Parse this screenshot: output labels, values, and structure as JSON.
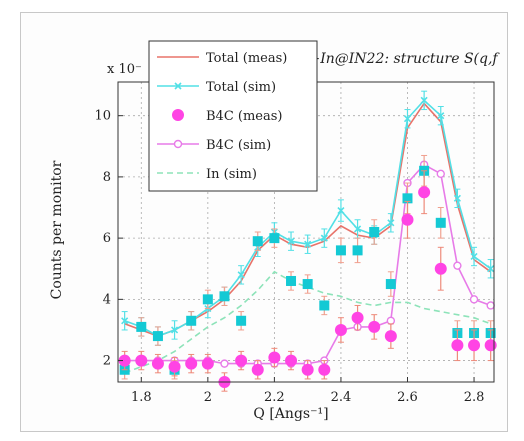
{
  "chart_data": {
    "type": "line",
    "title": "l−In@IN22: structure S(q,f",
    "xlabel": "Q [Angs⁻¹]",
    "ylabel": "Counts per monitor",
    "scale_label": "x 10⁻",
    "xlim": [
      1.73,
      2.86
    ],
    "ylim": [
      1.3,
      11.1
    ],
    "xticks": [
      1.8,
      2.0,
      2.2,
      2.4,
      2.6,
      2.8
    ],
    "xtick_labels": [
      "1.8",
      "2",
      "2.2",
      "2.4",
      "2.6",
      "2.8"
    ],
    "yticks": [
      2,
      4,
      6,
      8,
      10
    ],
    "ytick_labels": [
      "2",
      "4",
      "6",
      "8",
      "10"
    ],
    "grid": true,
    "legend_position": "top-left",
    "series": [
      {
        "name": "Total (meas)",
        "style": "line",
        "color": "#e8736a",
        "x": [
          1.75,
          1.8,
          1.85,
          1.9,
          1.95,
          2.0,
          2.05,
          2.1,
          2.15,
          2.2,
          2.25,
          2.3,
          2.35,
          2.4,
          2.45,
          2.5,
          2.55,
          2.6,
          2.65,
          2.7,
          2.75,
          2.8,
          2.85
        ],
        "y": [
          3.2,
          3.0,
          2.8,
          3.0,
          3.3,
          3.6,
          4.0,
          4.6,
          5.6,
          6.1,
          5.8,
          5.7,
          5.9,
          6.4,
          6.1,
          6.0,
          6.4,
          9.6,
          10.4,
          9.8,
          7.1,
          5.3,
          4.9
        ]
      },
      {
        "name": "Total (sim)",
        "style": "line-marker",
        "marker": "x",
        "color": "#52e0e6",
        "x": [
          1.75,
          1.8,
          1.85,
          1.9,
          1.95,
          2.0,
          2.05,
          2.1,
          2.15,
          2.2,
          2.25,
          2.3,
          2.35,
          2.4,
          2.45,
          2.5,
          2.55,
          2.6,
          2.65,
          2.7,
          2.75,
          2.8,
          2.85
        ],
        "y": [
          3.3,
          3.1,
          2.8,
          3.0,
          3.3,
          3.7,
          4.1,
          4.8,
          5.7,
          6.2,
          5.9,
          5.8,
          6.0,
          6.9,
          6.3,
          6.1,
          6.5,
          9.9,
          10.5,
          10.0,
          7.3,
          5.4,
          5.0
        ],
        "err": [
          0.3,
          0.3,
          0.3,
          0.3,
          0.3,
          0.3,
          0.3,
          0.3,
          0.3,
          0.3,
          0.3,
          0.3,
          0.3,
          0.35,
          0.3,
          0.3,
          0.3,
          0.3,
          0.3,
          0.3,
          0.3,
          0.3,
          0.3
        ]
      },
      {
        "name": "B4C (meas)",
        "style": "marker",
        "marker": "circle",
        "color": "#ff44e4",
        "x": [
          1.75,
          1.8,
          1.85,
          1.9,
          1.95,
          2.0,
          2.05,
          2.1,
          2.15,
          2.2,
          2.25,
          2.3,
          2.35,
          2.4,
          2.45,
          2.5,
          2.55,
          2.6,
          2.65,
          2.7,
          2.75,
          2.8,
          2.85
        ],
        "y": [
          2.0,
          2.0,
          1.9,
          1.8,
          1.9,
          1.9,
          1.3,
          2.0,
          1.7,
          2.1,
          2.0,
          1.7,
          1.7,
          3.0,
          3.4,
          3.1,
          2.8,
          6.6,
          7.5,
          5.0,
          2.5,
          2.5,
          2.5
        ],
        "err": [
          0.3,
          0.3,
          0.3,
          0.3,
          0.3,
          0.3,
          0.3,
          0.3,
          0.3,
          0.3,
          0.3,
          0.3,
          0.3,
          0.4,
          0.4,
          0.4,
          0.4,
          0.6,
          0.7,
          0.7,
          0.5,
          0.5,
          0.5
        ]
      },
      {
        "name": "B4C (sim)",
        "style": "line-marker",
        "marker": "circle-open",
        "color": "#e77be8",
        "x": [
          1.75,
          1.8,
          1.85,
          1.9,
          1.95,
          2.0,
          2.05,
          2.1,
          2.15,
          2.2,
          2.25,
          2.3,
          2.35,
          2.4,
          2.45,
          2.5,
          2.55,
          2.6,
          2.65,
          2.7,
          2.75,
          2.8,
          2.85
        ],
        "y": [
          2.0,
          2.0,
          2.0,
          2.0,
          2.0,
          2.0,
          1.9,
          1.9,
          1.9,
          1.9,
          1.9,
          1.9,
          2.0,
          3.0,
          3.1,
          3.1,
          3.3,
          7.8,
          8.4,
          8.1,
          5.1,
          4.0,
          3.8
        ]
      },
      {
        "name": "In (sim)",
        "style": "dashed",
        "color": "#8de3b9",
        "x": [
          1.75,
          1.8,
          1.85,
          1.9,
          1.95,
          2.0,
          2.05,
          2.1,
          2.15,
          2.2,
          2.25,
          2.3,
          2.35,
          2.4,
          2.45,
          2.5,
          2.55,
          2.6,
          2.65,
          2.7,
          2.75,
          2.8,
          2.85
        ],
        "y": [
          1.6,
          1.8,
          2.0,
          2.3,
          2.7,
          3.1,
          3.4,
          3.8,
          4.3,
          4.9,
          4.6,
          4.4,
          4.2,
          4.1,
          3.9,
          3.8,
          3.9,
          3.9,
          3.7,
          3.6,
          3.5,
          3.4,
          3.2
        ]
      },
      {
        "name": "",
        "style": "marker",
        "marker": "square",
        "color": "#14c9d4",
        "x": [
          1.75,
          1.8,
          1.85,
          1.9,
          1.95,
          2.0,
          2.05,
          2.1,
          2.15,
          2.2,
          2.25,
          2.3,
          2.35,
          2.4,
          2.45,
          2.5,
          2.55,
          2.6,
          2.65,
          2.7,
          2.75,
          2.8,
          2.85
        ],
        "y": [
          1.7,
          3.1,
          2.8,
          1.7,
          3.3,
          4.0,
          4.1,
          3.3,
          5.9,
          6.0,
          4.6,
          4.5,
          3.8,
          5.6,
          5.6,
          6.2,
          4.5,
          7.3,
          8.2,
          6.5,
          2.9,
          2.9,
          2.9
        ],
        "err": [
          0.3,
          0.3,
          0.3,
          0.3,
          0.3,
          0.3,
          0.3,
          0.3,
          0.3,
          0.3,
          0.3,
          0.3,
          0.3,
          0.4,
          0.4,
          0.4,
          0.4,
          0.5,
          0.5,
          0.5,
          0.4,
          0.4,
          0.4
        ]
      }
    ]
  }
}
